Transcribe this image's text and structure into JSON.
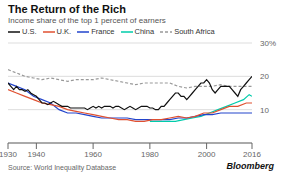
{
  "chart_data": {
    "type": "line",
    "title": "The Return of the Rich",
    "subtitle": "Income share of the top 1 percent of earners",
    "annotations": [
      "Source: World Inequality Database",
      "Bloomberg"
    ],
    "xlim": [
      1930,
      2016
    ],
    "xticks": [
      1930,
      1940,
      1960,
      1980,
      2000,
      2016
    ],
    "ylim": [
      0,
      30
    ],
    "yticks": [
      10,
      20,
      {
        "value": 30,
        "label": "30%"
      }
    ],
    "grid": true,
    "legend": "top",
    "series": [
      {
        "name": "U.S.",
        "color": "#111111",
        "line_style": "solid",
        "x": [
          1930,
          1931,
          1932,
          1933,
          1934,
          1935,
          1936,
          1937,
          1938,
          1939,
          1940,
          1941,
          1942,
          1943,
          1944,
          1945,
          1946,
          1947,
          1948,
          1949,
          1950,
          1951,
          1952,
          1953,
          1954,
          1955,
          1956,
          1957,
          1958,
          1959,
          1960,
          1961,
          1962,
          1963,
          1964,
          1965,
          1966,
          1967,
          1968,
          1969,
          1970,
          1971,
          1972,
          1973,
          1974,
          1975,
          1976,
          1977,
          1978,
          1979,
          1980,
          1981,
          1982,
          1983,
          1984,
          1985,
          1986,
          1987,
          1988,
          1989,
          1990,
          1991,
          1992,
          1993,
          1994,
          1995,
          1996,
          1997,
          1998,
          1999,
          2000,
          2001,
          2002,
          2003,
          2004,
          2005,
          2006,
          2007,
          2008,
          2009,
          2010,
          2011,
          2012,
          2013,
          2014,
          2015,
          2016
        ],
        "values": [
          18,
          17,
          16,
          17,
          16,
          16,
          15.5,
          16,
          15,
          14.5,
          14,
          13,
          12,
          12,
          11.5,
          12,
          12.5,
          12,
          11.5,
          11,
          11,
          11,
          10.5,
          10.5,
          10.5,
          10.5,
          10.5,
          10.5,
          10,
          10.5,
          11,
          10.5,
          11,
          10.5,
          11,
          11,
          11,
          10.5,
          11,
          11,
          10.5,
          10,
          10.5,
          11,
          10.5,
          10,
          10.5,
          11,
          11,
          11,
          10.5,
          10.5,
          10,
          10,
          11,
          11,
          12,
          13,
          14,
          15,
          15,
          14,
          14,
          13,
          14,
          15,
          16,
          17,
          18,
          18,
          19,
          18,
          16,
          15,
          16,
          17,
          17,
          17,
          17,
          16,
          15,
          14,
          16,
          17,
          18,
          19,
          20
        ]
      },
      {
        "name": "U.K.",
        "color": "#e05030",
        "line_style": "solid",
        "x": [
          1930,
          1933,
          1936,
          1939,
          1942,
          1945,
          1948,
          1951,
          1954,
          1957,
          1960,
          1963,
          1966,
          1969,
          1972,
          1975,
          1978,
          1981,
          1984,
          1987,
          1990,
          1993,
          1996,
          1999,
          2002,
          2005,
          2008,
          2011,
          2014,
          2016
        ],
        "values": [
          16,
          15,
          14,
          13,
          12,
          11.5,
          11,
          10,
          9.5,
          9,
          8.5,
          8,
          7.5,
          7,
          7,
          6.5,
          6.5,
          7,
          7,
          7.5,
          8,
          7.5,
          8,
          9,
          9,
          10,
          11,
          11,
          12,
          12
        ]
      },
      {
        "name": "France",
        "color": "#2244cc",
        "line_style": "solid",
        "x": [
          1930,
          1933,
          1936,
          1939,
          1942,
          1945,
          1948,
          1951,
          1954,
          1957,
          1960,
          1963,
          1966,
          1969,
          1972,
          1975,
          1978,
          1981,
          1984,
          1987,
          1990,
          1993,
          1996,
          1999,
          2002,
          2005,
          2008,
          2011,
          2014,
          2016
        ],
        "values": [
          18,
          17,
          16,
          14,
          13,
          12,
          10,
          9,
          9,
          8.5,
          8,
          7.5,
          7.5,
          7.5,
          7.5,
          7,
          7,
          7,
          7,
          7,
          7.5,
          7.5,
          8,
          8.5,
          8.5,
          9,
          9,
          9,
          9,
          9
        ]
      },
      {
        "name": "China",
        "color": "#00ccaa",
        "line_style": "solid",
        "x": [
          1980,
          1983,
          1986,
          1989,
          1992,
          1995,
          1998,
          2001,
          2004,
          2007,
          2010,
          2013,
          2015,
          2016
        ],
        "values": [
          6.5,
          6.5,
          6.5,
          6.5,
          7,
          7.5,
          8,
          9,
          10,
          11,
          12,
          13,
          14.5,
          14
        ]
      },
      {
        "name": "South Africa",
        "color": "#999999",
        "line_style": "dashed",
        "x": [
          1930,
          1933,
          1936,
          1939,
          1942,
          1945,
          1948,
          1951,
          1954,
          1957,
          1960,
          1963,
          1966,
          1969,
          1972,
          1975,
          1978,
          1981,
          1984,
          1987,
          1990,
          1993,
          1996,
          1999,
          2002,
          2005,
          2008,
          2011,
          2014,
          2016
        ],
        "values": [
          22,
          21,
          20,
          19.5,
          19,
          19.5,
          19,
          18.5,
          19,
          19,
          19,
          19.5,
          19,
          18.5,
          18,
          17.5,
          18,
          18,
          18,
          18,
          17,
          16.5,
          17,
          17,
          17,
          17.5,
          17,
          17,
          17,
          17
        ]
      }
    ]
  }
}
